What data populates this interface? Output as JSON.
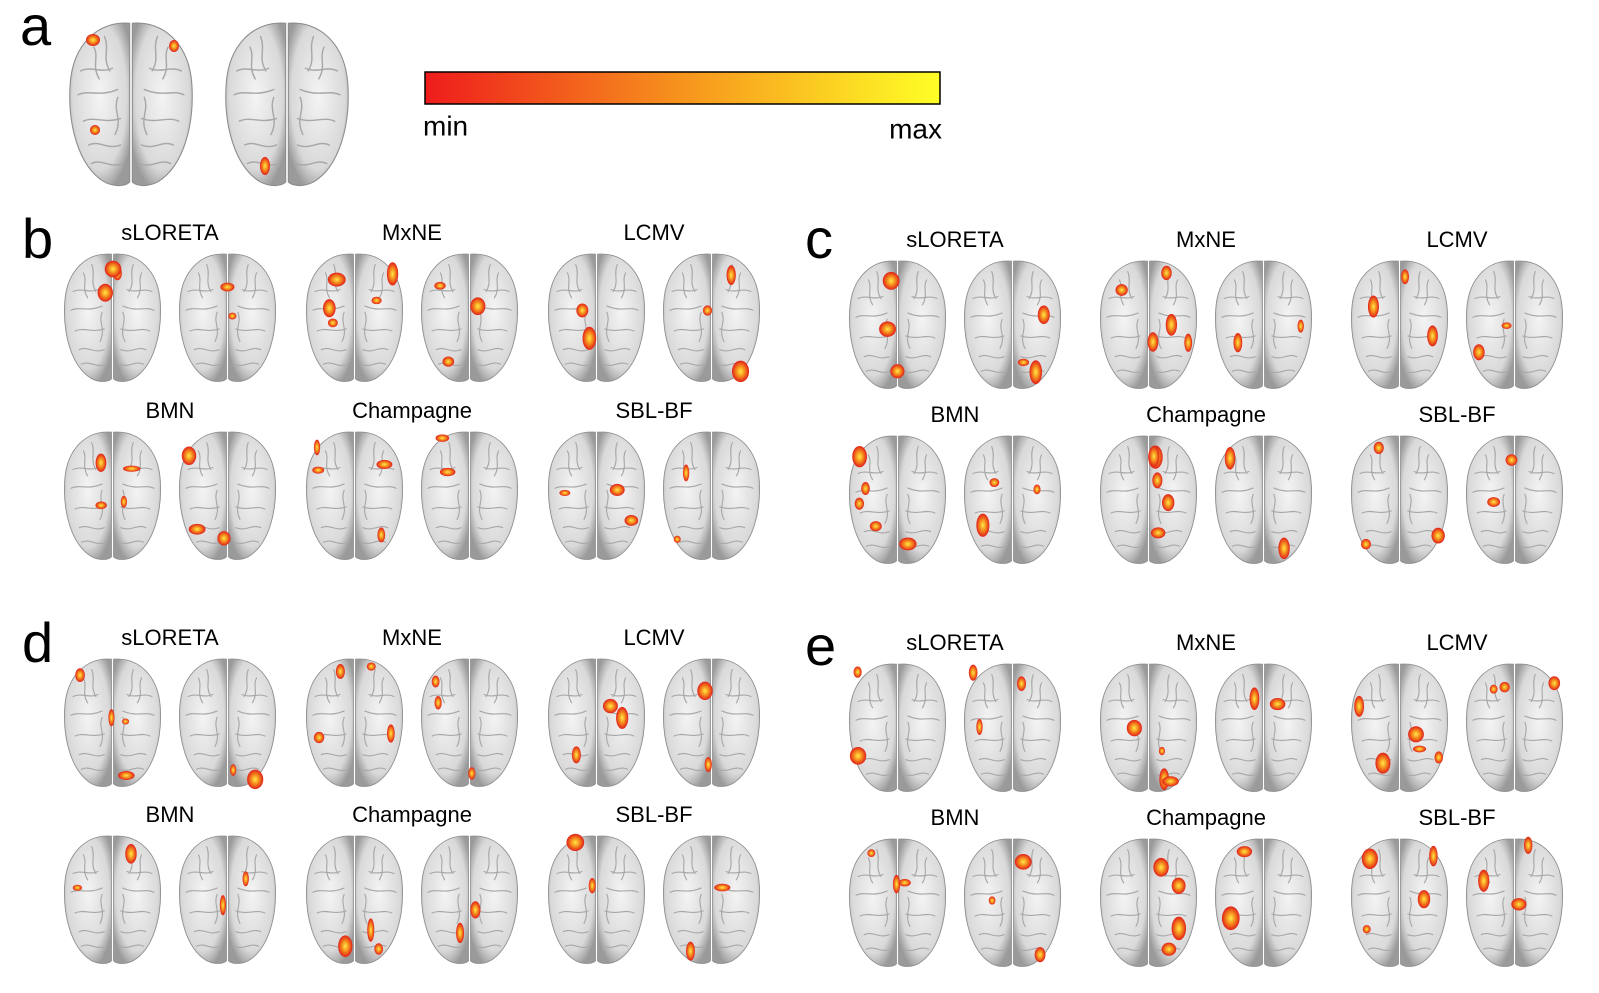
{
  "panel_a": {
    "label": "a",
    "colorbar": {
      "min_label": "min",
      "max_label": "max"
    }
  },
  "panels": [
    {
      "label": "b",
      "methods": [
        "sLORETA",
        "MxNE",
        "LCMV",
        "BMN",
        "Champagne",
        "SBL-BF"
      ]
    },
    {
      "label": "c",
      "methods": [
        "sLORETA",
        "MxNE",
        "LCMV",
        "BMN",
        "Champagne",
        "SBL-BF"
      ]
    },
    {
      "label": "d",
      "methods": [
        "sLORETA",
        "MxNE",
        "LCMV",
        "BMN",
        "Champagne",
        "SBL-BF"
      ]
    },
    {
      "label": "e",
      "methods": [
        "sLORETA",
        "MxNE",
        "LCMV",
        "BMN",
        "Champagne",
        "SBL-BF"
      ]
    }
  ]
}
